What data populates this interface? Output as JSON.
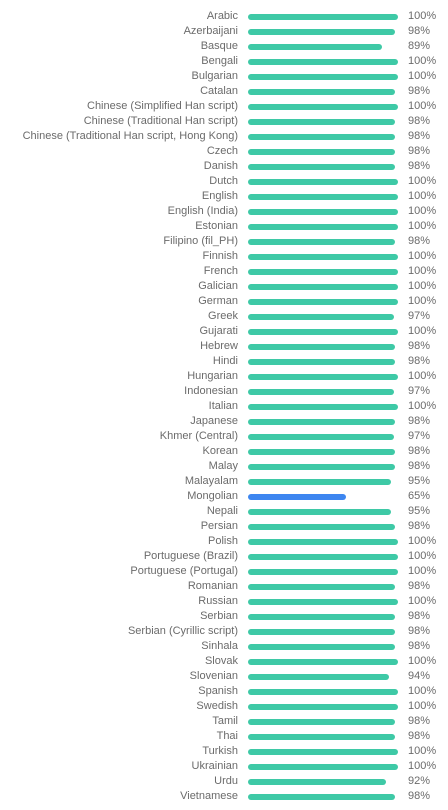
{
  "colors": {
    "normal": "#3ec9a6",
    "low": "#3d86f0"
  },
  "languages": [
    {
      "name": "Arabic",
      "pct": "100%",
      "value": 100
    },
    {
      "name": "Azerbaijani",
      "pct": "98%",
      "value": 98
    },
    {
      "name": "Basque",
      "pct": "89%",
      "value": 89
    },
    {
      "name": "Bengali",
      "pct": "100%",
      "value": 100
    },
    {
      "name": "Bulgarian",
      "pct": "100%",
      "value": 100
    },
    {
      "name": "Catalan",
      "pct": "98%",
      "value": 98
    },
    {
      "name": "Chinese (Simplified Han script)",
      "pct": "100%",
      "value": 100
    },
    {
      "name": "Chinese (Traditional Han script)",
      "pct": "98%",
      "value": 98
    },
    {
      "name": "Chinese (Traditional Han script, Hong Kong)",
      "pct": "98%",
      "value": 98
    },
    {
      "name": "Czech",
      "pct": "98%",
      "value": 98
    },
    {
      "name": "Danish",
      "pct": "98%",
      "value": 98
    },
    {
      "name": "Dutch",
      "pct": "100%",
      "value": 100
    },
    {
      "name": "English",
      "pct": "100%",
      "value": 100
    },
    {
      "name": "English (India)",
      "pct": "100%",
      "value": 100
    },
    {
      "name": "Estonian",
      "pct": "100%",
      "value": 100
    },
    {
      "name": "Filipino (fil_PH)",
      "pct": "98%",
      "value": 98
    },
    {
      "name": "Finnish",
      "pct": "100%",
      "value": 100
    },
    {
      "name": "French",
      "pct": "100%",
      "value": 100
    },
    {
      "name": "Galician",
      "pct": "100%",
      "value": 100
    },
    {
      "name": "German",
      "pct": "100%",
      "value": 100
    },
    {
      "name": "Greek",
      "pct": "97%",
      "value": 97
    },
    {
      "name": "Gujarati",
      "pct": "100%",
      "value": 100
    },
    {
      "name": "Hebrew",
      "pct": "98%",
      "value": 98
    },
    {
      "name": "Hindi",
      "pct": "98%",
      "value": 98
    },
    {
      "name": "Hungarian",
      "pct": "100%",
      "value": 100
    },
    {
      "name": "Indonesian",
      "pct": "97%",
      "value": 97
    },
    {
      "name": "Italian",
      "pct": "100%",
      "value": 100
    },
    {
      "name": "Japanese",
      "pct": "98%",
      "value": 98
    },
    {
      "name": "Khmer (Central)",
      "pct": "97%",
      "value": 97
    },
    {
      "name": "Korean",
      "pct": "98%",
      "value": 98
    },
    {
      "name": "Malay",
      "pct": "98%",
      "value": 98
    },
    {
      "name": "Malayalam",
      "pct": "95%",
      "value": 95
    },
    {
      "name": "Mongolian",
      "pct": "65%",
      "value": 65
    },
    {
      "name": "Nepali",
      "pct": "95%",
      "value": 95
    },
    {
      "name": "Persian",
      "pct": "98%",
      "value": 98
    },
    {
      "name": "Polish",
      "pct": "100%",
      "value": 100
    },
    {
      "name": "Portuguese (Brazil)",
      "pct": "100%",
      "value": 100
    },
    {
      "name": "Portuguese (Portugal)",
      "pct": "100%",
      "value": 100
    },
    {
      "name": "Romanian",
      "pct": "98%",
      "value": 98
    },
    {
      "name": "Russian",
      "pct": "100%",
      "value": 100
    },
    {
      "name": "Serbian",
      "pct": "98%",
      "value": 98
    },
    {
      "name": "Serbian (Cyrillic script)",
      "pct": "98%",
      "value": 98
    },
    {
      "name": "Sinhala",
      "pct": "98%",
      "value": 98
    },
    {
      "name": "Slovak",
      "pct": "100%",
      "value": 100
    },
    {
      "name": "Slovenian",
      "pct": "94%",
      "value": 94
    },
    {
      "name": "Spanish",
      "pct": "100%",
      "value": 100
    },
    {
      "name": "Swedish",
      "pct": "100%",
      "value": 100
    },
    {
      "name": "Tamil",
      "pct": "98%",
      "value": 98
    },
    {
      "name": "Thai",
      "pct": "98%",
      "value": 98
    },
    {
      "name": "Turkish",
      "pct": "100%",
      "value": 100
    },
    {
      "name": "Ukrainian",
      "pct": "100%",
      "value": 100
    },
    {
      "name": "Urdu",
      "pct": "92%",
      "value": 92
    },
    {
      "name": "Vietnamese",
      "pct": "98%",
      "value": 98
    }
  ]
}
